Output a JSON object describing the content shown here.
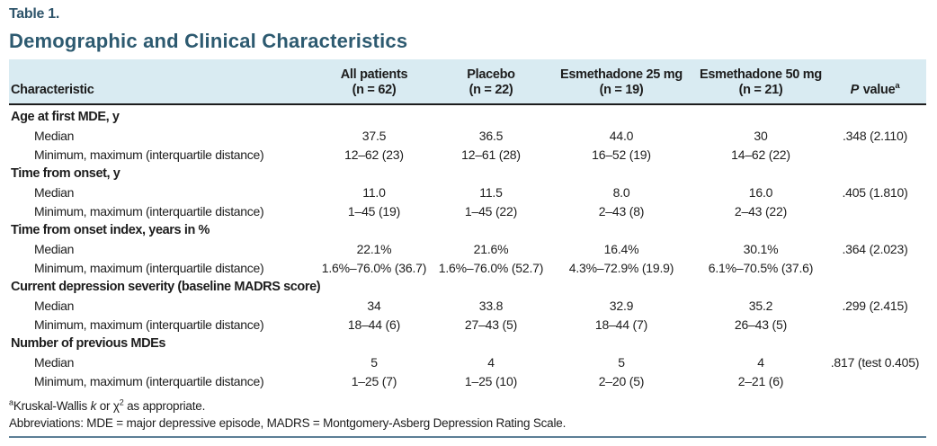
{
  "page": {
    "table_label": "Table 1.",
    "title": "Demographic and Clinical Characteristics"
  },
  "colors": {
    "header_bg": "#d9ebf2",
    "title_teal": "#2d5a70",
    "label_navy": "#2f556b",
    "rule_black": "#1c1c1c",
    "rule_blue": "#5c7f96",
    "text_ink": "#1d1d1d"
  },
  "table": {
    "header": {
      "characteristic": "Characteristic",
      "columns": [
        {
          "line1": "All patients",
          "line2": "(n = 62)"
        },
        {
          "line1": "Placebo",
          "line2": "(n = 22)"
        },
        {
          "line1": "Esmethadone 25 mg",
          "line2": "(n = 19)"
        },
        {
          "line1": "Esmethadone 50 mg",
          "line2": "(n = 21)"
        }
      ],
      "p_value": {
        "italic": "P",
        "text": " value",
        "sup": "a"
      }
    },
    "groups": [
      {
        "label": "Age at first MDE, y",
        "rows": [
          {
            "label": "Median",
            "values": [
              "37.5",
              "36.5",
              "44.0",
              "30",
              ".348 (2.110)"
            ]
          },
          {
            "label": "Minimum, maximum (interquartile distance)",
            "values": [
              "12–62 (23)",
              "12–61 (28)",
              "16–52 (19)",
              "14–62 (22)",
              ""
            ]
          }
        ]
      },
      {
        "label": "Time from onset, y",
        "rows": [
          {
            "label": "Median",
            "values": [
              "11.0",
              "11.5",
              "8.0",
              "16.0",
              ".405 (1.810)"
            ]
          },
          {
            "label": "Minimum, maximum (interquartile distance)",
            "values": [
              "1–45 (19)",
              "1–45 (22)",
              "2–43 (8)",
              "2–43 (22)",
              ""
            ]
          }
        ]
      },
      {
        "label": "Time from onset index, years in %",
        "rows": [
          {
            "label": "Median",
            "values": [
              "22.1%",
              "21.6%",
              "16.4%",
              "30.1%",
              ".364 (2.023)"
            ]
          },
          {
            "label": "Minimum, maximum (interquartile distance)",
            "values": [
              "1.6%–76.0% (36.7)",
              "1.6%–76.0% (52.7)",
              "4.3%–72.9% (19.9)",
              "6.1%–70.5% (37.6)",
              ""
            ]
          }
        ]
      },
      {
        "label": "Current depression severity (baseline MADRS score)",
        "rows": [
          {
            "label": "Median",
            "values": [
              "34",
              "33.8",
              "32.9",
              "35.2",
              ".299 (2.415)"
            ]
          },
          {
            "label": "Minimum, maximum (interquartile distance)",
            "values": [
              "18–44 (6)",
              "27–43 (5)",
              "18–44 (7)",
              "26–43 (5)",
              ""
            ]
          }
        ]
      },
      {
        "label": "Number of previous MDEs",
        "rows": [
          {
            "label": "Median",
            "values": [
              "5",
              "4",
              "5",
              "4",
              ".817 (test 0.405)"
            ]
          },
          {
            "label": "Minimum, maximum (interquartile distance)",
            "values": [
              "1–25 (7)",
              "1–25 (10)",
              "2–20 (5)",
              "2–21 (6)",
              ""
            ]
          }
        ]
      }
    ]
  },
  "footnotes": {
    "line1_segments": [
      {
        "text": "a",
        "style": "sup"
      },
      {
        "text": "Kruskal-Wallis "
      },
      {
        "text": "k",
        "style": "italic"
      },
      {
        "text": " or χ"
      },
      {
        "text": "2",
        "style": "sup"
      },
      {
        "text": " as appropriate."
      }
    ],
    "line2": "Abbreviations: MDE = major depressive episode, MADRS = Montgomery-Asberg Depression Rating Scale."
  }
}
